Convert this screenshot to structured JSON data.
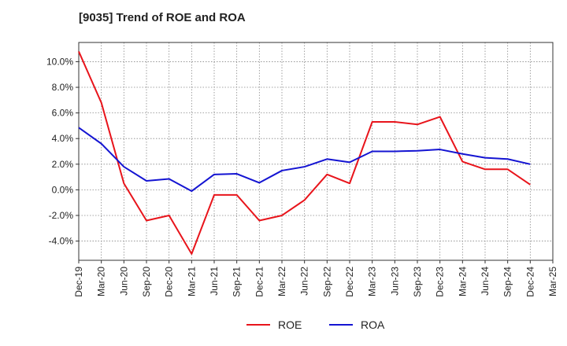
{
  "chart_data": {
    "type": "line",
    "title": "[9035]  Trend of ROE and ROA",
    "xlabel": "",
    "ylabel": "",
    "categories": [
      "Dec-19",
      "Mar-20",
      "Jun-20",
      "Sep-20",
      "Dec-20",
      "Mar-21",
      "Jun-21",
      "Sep-21",
      "Dec-21",
      "Mar-22",
      "Jun-22",
      "Sep-22",
      "Dec-22",
      "Mar-23",
      "Jun-23",
      "Sep-23",
      "Dec-23",
      "Mar-24",
      "Jun-24",
      "Sep-24",
      "Dec-24",
      "Mar-25"
    ],
    "ylim": [
      -5.5,
      11.5
    ],
    "yticks": [
      -4,
      -2,
      0,
      2,
      4,
      6,
      8,
      10
    ],
    "ytick_labels": [
      "-4.0%",
      "-2.0%",
      "0.0%",
      "2.0%",
      "4.0%",
      "6.0%",
      "8.0%",
      "10.0%"
    ],
    "grid": true,
    "legend_position": "bottom",
    "series": [
      {
        "name": "ROE",
        "color": "#e8141b",
        "values": [
          10.8,
          6.8,
          0.5,
          -2.4,
          -2.0,
          -5.0,
          -0.4,
          -0.4,
          -2.4,
          -2.0,
          -0.8,
          1.2,
          0.5,
          5.3,
          5.3,
          5.1,
          5.7,
          2.2,
          1.6,
          1.6,
          0.4,
          null
        ]
      },
      {
        "name": "ROA",
        "color": "#1414d2",
        "values": [
          4.85,
          3.6,
          1.8,
          0.7,
          0.85,
          -0.1,
          1.2,
          1.25,
          0.55,
          1.5,
          1.8,
          2.4,
          2.15,
          3.0,
          3.0,
          3.05,
          3.15,
          2.8,
          2.5,
          2.4,
          2.0,
          null
        ]
      }
    ]
  }
}
